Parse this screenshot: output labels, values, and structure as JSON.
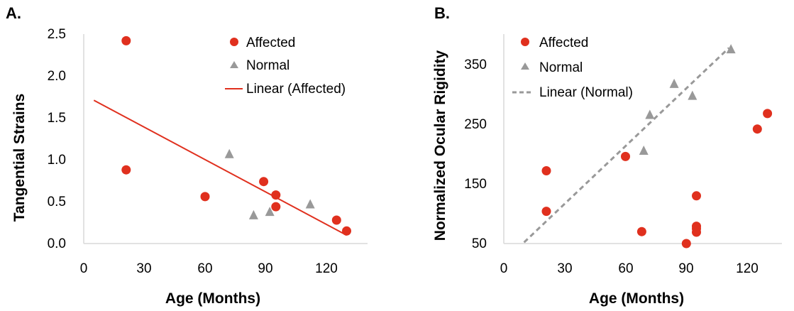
{
  "chart_data": [
    {
      "type": "scatter",
      "panel_label": "A.",
      "xlabel": "Age (Months)",
      "ylabel": "Tangential Strains",
      "xlim": [
        0,
        135
      ],
      "ylim": [
        0,
        2.5
      ],
      "xticks": [
        "0",
        "30",
        "60",
        "90",
        "120"
      ],
      "yticks": [
        "0.0",
        "0.5",
        "1.0",
        "1.5",
        "2.0",
        "2.5"
      ],
      "legend_position": "top-right",
      "series": [
        {
          "name": "Affected",
          "marker": "circle",
          "color": "#e0301e",
          "points": [
            [
              21,
              2.42
            ],
            [
              21,
              0.88
            ],
            [
              60,
              0.56
            ],
            [
              89,
              0.74
            ],
            [
              95,
              0.58
            ],
            [
              95,
              0.44
            ],
            [
              125,
              0.28
            ],
            [
              130,
              0.15
            ]
          ]
        },
        {
          "name": "Normal",
          "marker": "triangle",
          "color": "#999999",
          "points": [
            [
              72,
              1.07
            ],
            [
              84,
              0.34
            ],
            [
              92,
              0.38
            ],
            [
              112,
              0.47
            ]
          ]
        }
      ],
      "trendline": {
        "name": "Linear (Affected)",
        "style": "solid",
        "color": "#e0301e",
        "from": [
          5,
          1.71
        ],
        "to": [
          130,
          0.1
        ]
      }
    },
    {
      "type": "scatter",
      "panel_label": "B.",
      "xlabel": "Age (Months)",
      "ylabel": "Normalized Ocular Rigidity",
      "xlim": [
        0,
        135
      ],
      "ylim": [
        50,
        400
      ],
      "xticks": [
        "0",
        "30",
        "60",
        "90",
        "120"
      ],
      "yticks": [
        "50",
        "150",
        "250",
        "350"
      ],
      "legend_position": "top-left",
      "series": [
        {
          "name": "Affected",
          "marker": "circle",
          "color": "#e0301e",
          "points": [
            [
              21,
              172
            ],
            [
              21,
              104
            ],
            [
              60,
              196
            ],
            [
              68,
              70
            ],
            [
              90,
              50
            ],
            [
              95,
              130
            ],
            [
              95,
              79
            ],
            [
              95,
              75
            ],
            [
              95,
              69
            ],
            [
              125,
              242
            ],
            [
              130,
              268
            ]
          ]
        },
        {
          "name": "Normal",
          "marker": "triangle",
          "color": "#999999",
          "points": [
            [
              72,
              266
            ],
            [
              84,
              318
            ],
            [
              93,
              298
            ],
            [
              112,
              376
            ],
            [
              69,
              206
            ]
          ]
        }
      ],
      "trendline": {
        "name": "Linear (Normal)",
        "style": "dashed",
        "color": "#999999",
        "from": [
          10,
          52
        ],
        "to": [
          111,
          378
        ]
      }
    }
  ]
}
